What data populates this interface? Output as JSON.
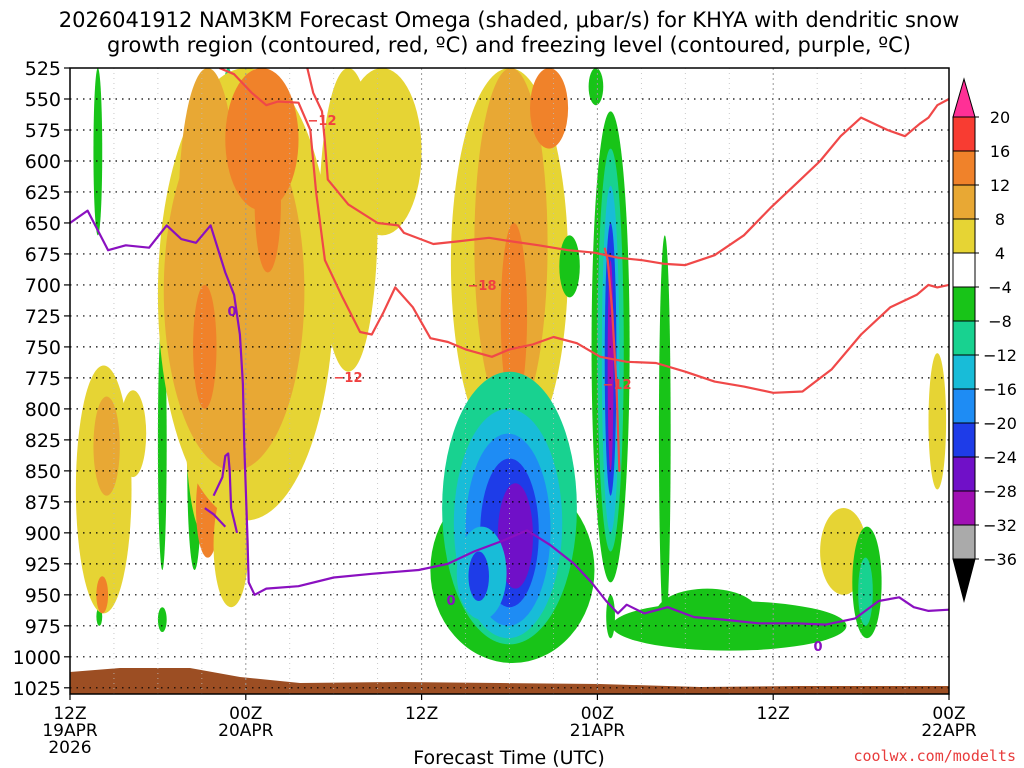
{
  "chart_data": {
    "type": "heatmap",
    "title_line1": "2026041912 NAM3KM Forecast Omega (shaded, μbar/s) for KHYA with dendritic snow",
    "title_line2": "growth region (contoured, red, ºC) and freezing level (contoured, purple, ºC)",
    "xlabel": "Forecast Time (UTC)",
    "credit": "coolwx.com/modelts",
    "grid": "dotted",
    "y_axis": {
      "scale": "pressure (hPa), increasing downward",
      "ticks": [
        525,
        550,
        575,
        600,
        625,
        650,
        675,
        700,
        725,
        750,
        775,
        800,
        825,
        850,
        875,
        900,
        925,
        950,
        975,
        1000,
        1025
      ],
      "range": [
        525,
        1030
      ]
    },
    "x_axis": {
      "range_hours": [
        0,
        60
      ],
      "ticks": [
        {
          "hour": 0,
          "line1": "12Z",
          "line2": "19APR",
          "line3": "2026"
        },
        {
          "hour": 12,
          "line1": "00Z",
          "line2": "20APR",
          "line3": ""
        },
        {
          "hour": 24,
          "line1": "12Z",
          "line2": "",
          "line3": ""
        },
        {
          "hour": 36,
          "line1": "00Z",
          "line2": "21APR",
          "line3": ""
        },
        {
          "hour": 48,
          "line1": "12Z",
          "line2": "",
          "line3": ""
        },
        {
          "hour": 60,
          "line1": "00Z",
          "line2": "22APR",
          "line3": ""
        }
      ]
    },
    "colorbar": {
      "labels": [
        "20",
        "16",
        "12",
        "8",
        "4",
        "−4",
        "−8",
        "−12",
        "−16",
        "−20",
        "−24",
        "−28",
        "−32",
        "−36"
      ],
      "colors": [
        "#ff3096",
        "#f83c32",
        "#f0822a",
        "#e8a834",
        "#e6d434",
        "#ffffff",
        "#18c418",
        "#18d290",
        "#18bcd8",
        "#1e8cf4",
        "#1e3ce8",
        "#7010c8",
        "#a010b4",
        "#aaaaaa",
        "#000000"
      ]
    },
    "contour_labels": {
      "dgz_upper": "−12",
      "dgz_mid": "−18",
      "dgz_lower": "−12",
      "dgz_core": "−12",
      "freezing_a": "0",
      "freezing_b": "0",
      "freezing_c": "0"
    },
    "omega_cells": [
      {
        "t": [
          1.6,
          2.2
        ],
        "p": [
          525,
          660
        ],
        "v": -6
      },
      {
        "t": [
          1.8,
          2.2
        ],
        "p": [
          960,
          975
        ],
        "v": -6
      },
      {
        "t": [
          0.4,
          4.2
        ],
        "p": [
          765,
          965
        ],
        "v": 6
      },
      {
        "t": [
          1.6,
          3.4
        ],
        "p": [
          790,
          870
        ],
        "v": 10
      },
      {
        "t": [
          3.4,
          5.2
        ],
        "p": [
          785,
          855
        ],
        "v": 5
      },
      {
        "t": [
          6.0,
          6.6
        ],
        "p": [
          725,
          930
        ],
        "v": -6
      },
      {
        "t": [
          6.0,
          6.6
        ],
        "p": [
          960,
          980
        ],
        "v": -6
      },
      {
        "t": [
          7.4,
          9.8
        ],
        "p": [
          580,
          660
        ],
        "v": -6
      },
      {
        "t": [
          8.0,
          9.0
        ],
        "p": [
          760,
          930
        ],
        "v": -6
      },
      {
        "t": [
          7.8,
          10.4
        ],
        "p": [
          675,
          900
        ],
        "v": 6
      },
      {
        "t": [
          8.4,
          10.0
        ],
        "p": [
          700,
          800
        ],
        "v": 10
      },
      {
        "t": [
          9.4,
          10.2
        ],
        "p": [
          710,
          770
        ],
        "v": 18
      },
      {
        "t": [
          8.6,
          10.2
        ],
        "p": [
          840,
          920
        ],
        "v": 14
      },
      {
        "t": [
          9.8,
          12.2
        ],
        "p": [
          860,
          960
        ],
        "v": 6
      },
      {
        "t": [
          10.2,
          11.4
        ],
        "p": [
          525,
          690
        ],
        "v": -8
      },
      {
        "t": [
          10.4,
          11.2
        ],
        "p": [
          525,
          620
        ],
        "v": -12
      },
      {
        "t": [
          6.0,
          18.0
        ],
        "p": [
          525,
          890
        ],
        "v": 5
      },
      {
        "t": [
          6.4,
          16.0
        ],
        "p": [
          560,
          850
        ],
        "v": 9
      },
      {
        "t": [
          7.4,
          11.4
        ],
        "p": [
          525,
          760
        ],
        "v": 9
      },
      {
        "t": [
          10.6,
          15.6
        ],
        "p": [
          525,
          640
        ],
        "v": 13
      },
      {
        "t": [
          8.4,
          10.0
        ],
        "p": [
          700,
          800
        ],
        "v": 12
      },
      {
        "t": [
          12.6,
          14.4
        ],
        "p": [
          575,
          690
        ],
        "v": 13
      },
      {
        "t": [
          17.0,
          21.0
        ],
        "p": [
          525,
          770
        ],
        "v": 5
      },
      {
        "t": [
          18.6,
          24.0
        ],
        "p": [
          525,
          660
        ],
        "v": 5
      },
      {
        "t": [
          26.0,
          34.0
        ],
        "p": [
          525,
          840
        ],
        "v": 6
      },
      {
        "t": [
          27.6,
          32.6
        ],
        "p": [
          525,
          810
        ],
        "v": 9
      },
      {
        "t": [
          29.4,
          31.2
        ],
        "p": [
          650,
          800
        ],
        "v": 13
      },
      {
        "t": [
          31.4,
          34.0
        ],
        "p": [
          525,
          590
        ],
        "v": 12
      },
      {
        "t": [
          24.6,
          35.8
        ],
        "p": [
          855,
          1005
        ],
        "v": -6
      },
      {
        "t": [
          25.4,
          34.6
        ],
        "p": [
          770,
          990
        ],
        "v": -9
      },
      {
        "t": [
          26.2,
          33.6
        ],
        "p": [
          800,
          985
        ],
        "v": -13
      },
      {
        "t": [
          27.0,
          32.8
        ],
        "p": [
          820,
          975
        ],
        "v": -17
      },
      {
        "t": [
          28.0,
          32.0
        ],
        "p": [
          840,
          960
        ],
        "v": -22
      },
      {
        "t": [
          29.2,
          31.6
        ],
        "p": [
          860,
          945
        ],
        "v": -26
      },
      {
        "t": [
          26.4,
          29.8
        ],
        "p": [
          895,
          970
        ],
        "v": -16
      },
      {
        "t": [
          27.2,
          28.6
        ],
        "p": [
          915,
          955
        ],
        "v": -22
      },
      {
        "t": [
          33.4,
          34.8
        ],
        "p": [
          660,
          710
        ],
        "v": -6
      },
      {
        "t": [
          35.4,
          36.4
        ],
        "p": [
          525,
          555
        ],
        "v": -6
      },
      {
        "t": [
          35.6,
          38.2
        ],
        "p": [
          560,
          940
        ],
        "v": -6
      },
      {
        "t": [
          36.0,
          37.8
        ],
        "p": [
          590,
          915
        ],
        "v": -10
      },
      {
        "t": [
          36.3,
          37.5
        ],
        "p": [
          620,
          900
        ],
        "v": -16
      },
      {
        "t": [
          36.5,
          37.3
        ],
        "p": [
          650,
          870
        ],
        "v": -24
      },
      {
        "t": [
          36.7,
          37.1
        ],
        "p": [
          680,
          850
        ],
        "v": -30
      },
      {
        "t": [
          36.6,
          37.2
        ],
        "p": [
          950,
          985
        ],
        "v": -8
      },
      {
        "t": [
          40.2,
          41.0
        ],
        "p": [
          660,
          980
        ],
        "v": -6
      },
      {
        "t": [
          37.0,
          53.0
        ],
        "p": [
          955,
          995
        ],
        "v": -6
      },
      {
        "t": [
          40.0,
          47.0
        ],
        "p": [
          945,
          985
        ],
        "v": -6
      },
      {
        "t": [
          51.2,
          54.4
        ],
        "p": [
          880,
          950
        ],
        "v": 5
      },
      {
        "t": [
          53.4,
          55.4
        ],
        "p": [
          895,
          985
        ],
        "v": -7
      },
      {
        "t": [
          53.8,
          54.8
        ],
        "p": [
          920,
          975
        ],
        "v": -12
      },
      {
        "t": [
          58.6,
          59.8
        ],
        "p": [
          755,
          865
        ],
        "v": 5
      },
      {
        "t": [
          1.8,
          2.6
        ],
        "p": [
          935,
          965
        ],
        "v": 12
      }
    ],
    "dgz_contours": [
      {
        "label": "−12",
        "t": [
          10.2,
          11.2,
          12.4,
          13.4,
          14.2,
          15.6,
          16.4,
          16.8,
          17.4,
          18.6,
          19.8,
          20.6,
          21.4,
          22.2,
          23.4,
          24.6,
          25.8,
          27.0,
          28.8,
          30.0,
          31.6,
          33.0,
          34.6,
          36.2,
          38.0,
          40.0,
          42.0,
          44.0,
          46.0,
          48.0,
          50.0,
          52.0,
          54.0,
          56.0,
          57.8,
          58.6,
          59.2,
          60.0
        ],
        "p": [
          525,
          530,
          545,
          555,
          552,
          553,
          575,
          625,
          680,
          710,
          738,
          740,
          722,
          702,
          718,
          743,
          746,
          752,
          758,
          752,
          748,
          742,
          747,
          758,
          762,
          763,
          770,
          778,
          782,
          787,
          786,
          768,
          740,
          718,
          708,
          700,
          702,
          700
        ]
      },
      {
        "label": "−12",
        "t": [
          16.2,
          16.6,
          17.2,
          17.4,
          17.6,
          19.0,
          21.0,
          22.4,
          22.8,
          24.8,
          26.4,
          28.6,
          30.2,
          32.0,
          34.0,
          35.8,
          37.4,
          39.0,
          40.6,
          42.0,
          44.0,
          46.0,
          47.8,
          49.6,
          51.2,
          52.6,
          54.0,
          55.8,
          57.0,
          58.0,
          58.6,
          59.2,
          60.0
        ],
        "p": [
          525,
          545,
          560,
          585,
          615,
          635,
          650,
          652,
          658,
          667,
          665,
          662,
          665,
          668,
          672,
          674,
          678,
          680,
          683,
          684,
          676,
          660,
          638,
          618,
          600,
          580,
          565,
          575,
          580,
          570,
          565,
          555,
          550
        ]
      },
      {
        "label": "−12",
        "t": [
          36.5,
          36.7,
          37.0,
          37.3,
          37.5,
          37.3,
          37.0,
          36.7,
          36.5
        ],
        "p": [
          670,
          680,
          720,
          780,
          850,
          780,
          720,
          680,
          670
        ]
      }
    ],
    "freezing_contours": [
      {
        "label": "0",
        "t": [
          0.0,
          1.2,
          2.6,
          3.8,
          5.4,
          6.6,
          7.6,
          8.6,
          9.6,
          10.6,
          11.2,
          11.6,
          11.8,
          11.9,
          12.0,
          12.1,
          12.2,
          12.6,
          13.4,
          15.6,
          18.0,
          20.6,
          23.8,
          25.8,
          27.6,
          29.4,
          31.2,
          32.8,
          34.4,
          35.6,
          36.6,
          37.4,
          38.0,
          39.2,
          40.8,
          42.6,
          44.6,
          47.0,
          49.6,
          51.6,
          53.6,
          55.2,
          56.6,
          57.6,
          58.6,
          60.0
        ],
        "p": [
          650,
          640,
          672,
          668,
          670,
          652,
          663,
          666,
          652,
          690,
          708,
          740,
          780,
          830,
          865,
          900,
          940,
          950,
          945,
          943,
          936,
          933,
          930,
          925,
          915,
          907,
          898,
          910,
          925,
          940,
          955,
          965,
          958,
          965,
          960,
          968,
          970,
          973,
          973,
          974,
          969,
          955,
          952,
          960,
          963,
          962
        ]
      },
      {
        "label": "0",
        "t": [
          9.8,
          10.4,
          10.6,
          10.8,
          10.9,
          11.0,
          11.2,
          11.4
        ],
        "p": [
          870,
          855,
          838,
          836,
          850,
          880,
          890,
          900
        ]
      },
      {
        "label": "0",
        "t": [
          9.2,
          9.8,
          10.6
        ],
        "p": [
          880,
          885,
          895
        ]
      }
    ]
  }
}
